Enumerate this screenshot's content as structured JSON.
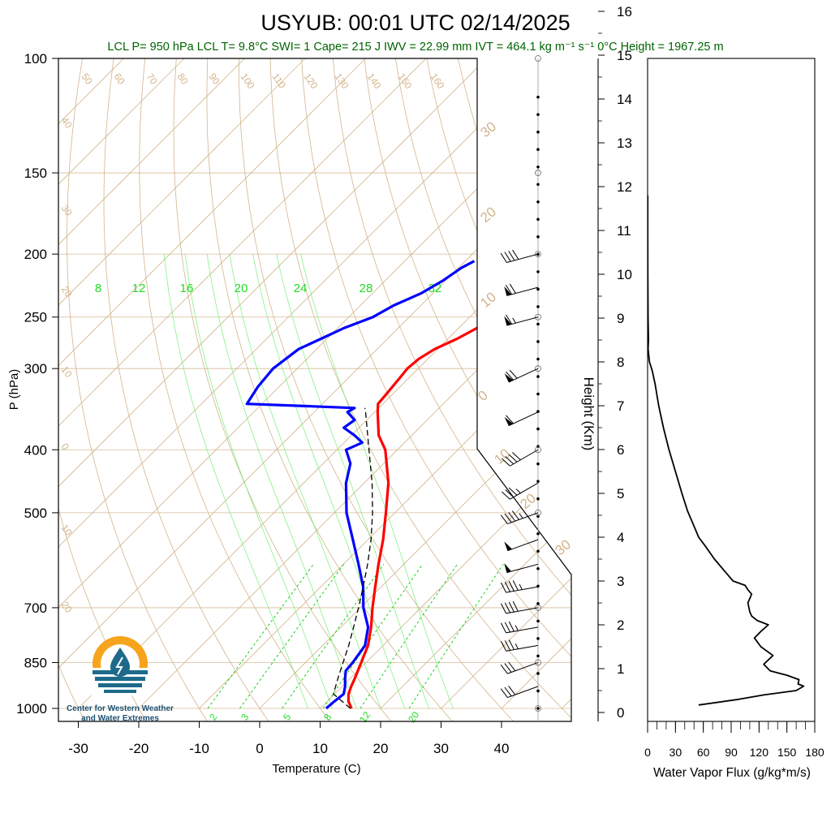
{
  "title": "USYUB: 00:01 UTC 02/14/2025",
  "subtitle": "LCL P= 950 hPa  LCL T= 9.8°C  SWI= 1  Cape= 215 J  IWV = 22.99 mm  IVT = 464.1 kg m⁻¹ s⁻¹  0°C Height = 1967.25 m",
  "logo_text": [
    "Center for Western Weather",
    "and Water Extremes"
  ],
  "colors": {
    "temperature": "#ff0000",
    "dewpoint": "#0000ff",
    "parcel": "#000000",
    "dry_adiabat": "#d2b48c",
    "isotherm": "#d2b48c",
    "mixing_ratio": "#00cc00",
    "moist_adiabat": "#66ee66",
    "subtitle": "#006400",
    "logo_orange": "#f6a41c",
    "logo_teal": "#1d6a8a"
  },
  "chart_data": [
    {
      "type": "line",
      "name": "skew-t",
      "xlabel": "Temperature (C)",
      "ylabel": "P (hPa)",
      "xticks": [
        "-30",
        "-20",
        "-10",
        "0",
        "10",
        "20",
        "30",
        "40"
      ],
      "yticks": [
        "100",
        "150",
        "200",
        "250",
        "300",
        "400",
        "500",
        "700",
        "850",
        "1000"
      ],
      "ylim": [
        1000,
        100
      ],
      "yscale": "log",
      "xlim_at_surface": [
        -34,
        47
      ],
      "skew": "45 degrees",
      "dry_adiabat_labels": [
        "50",
        "60",
        "70",
        "80",
        "90",
        "100",
        "110",
        "120",
        "130",
        "140",
        "150",
        "160",
        "40",
        "30",
        "20",
        "10",
        "0",
        "-10",
        "-20"
      ],
      "dry_adiabat_labels_left": [
        "40",
        "30",
        "20",
        "10",
        "0",
        "10",
        "20"
      ],
      "right_labels": [
        "30",
        "20",
        "10",
        "0",
        "10",
        "20",
        "30"
      ],
      "mixing_ratio_labels": [
        "8",
        "12",
        "16",
        "20",
        "24",
        "28",
        "32"
      ],
      "mixing_ratio_bottom_labels": [
        "2",
        "3",
        "5",
        "8",
        "12",
        "20"
      ],
      "series": [
        {
          "name": "temperature",
          "p": [
            1000,
            975,
            950,
            925,
            900,
            875,
            850,
            800,
            750,
            700,
            650,
            600,
            550,
            500,
            450,
            400,
            380,
            350,
            340,
            330,
            310,
            300,
            290,
            280,
            270,
            260,
            250,
            240,
            230,
            220,
            210,
            205
          ],
          "t": [
            15.2,
            13.5,
            12.3,
            11.5,
            10.8,
            10.0,
            9.2,
            7.5,
            5.0,
            2.0,
            -1.0,
            -4.2,
            -7.5,
            -11.5,
            -16.0,
            -22.0,
            -25.5,
            -29.5,
            -30.8,
            -31.0,
            -31.5,
            -31.8,
            -31.5,
            -30.5,
            -28.5,
            -27.0,
            -25.0,
            -24.0,
            -24.5,
            -24.2,
            -23.5,
            -22.5
          ]
        },
        {
          "name": "dewpoint",
          "p": [
            1000,
            975,
            950,
            925,
            900,
            875,
            850,
            800,
            750,
            700,
            650,
            600,
            550,
            500,
            450,
            420,
            400,
            390,
            380,
            370,
            360,
            350,
            345,
            343,
            340,
            320,
            300,
            280,
            270,
            260,
            250,
            240,
            230,
            220,
            210,
            205
          ],
          "t": [
            11.0,
            11.2,
            11.5,
            10.5,
            9.2,
            8.0,
            7.8,
            7.0,
            4.5,
            0.5,
            -3.0,
            -7.5,
            -12.5,
            -18.0,
            -23.0,
            -25.5,
            -28.5,
            -27.0,
            -29.5,
            -32.5,
            -32.0,
            -34.5,
            -34.0,
            -41.0,
            -52.5,
            -53.5,
            -54.0,
            -53.0,
            -51.0,
            -49.0,
            -46.0,
            -44.5,
            -42.0,
            -40.5,
            -39.5,
            -38.5
          ]
        },
        {
          "name": "parcel",
          "p": [
            1000,
            950,
            900,
            850,
            800,
            750,
            700,
            650,
            600,
            550,
            500,
            450,
            400,
            350,
            345
          ],
          "t": [
            15.0,
            9.8,
            8.0,
            6.2,
            4.3,
            2.1,
            -0.3,
            -3.0,
            -6.0,
            -9.5,
            -13.7,
            -18.7,
            -24.7,
            -31.5,
            -32.3
          ]
        }
      ],
      "wind_barbs": {
        "p": [
          1000,
          925,
          850,
          800,
          750,
          700,
          650,
          600,
          550,
          500,
          450,
          400,
          350,
          300,
          250,
          225,
          200
        ],
        "direction_deg": [
          0,
          250,
          250,
          260,
          260,
          260,
          260,
          255,
          250,
          250,
          240,
          240,
          245,
          245,
          255,
          255,
          255
        ],
        "speed_kt": [
          0,
          30,
          30,
          35,
          35,
          40,
          45,
          50,
          50,
          45,
          35,
          40,
          60,
          70,
          65,
          70,
          40
        ]
      }
    },
    {
      "type": "line",
      "name": "water-vapor-flux",
      "xlabel": "Water Vapor Flux (g/kg*m/s)",
      "ylabel": "Height (Km)",
      "xticks": [
        "0",
        "30",
        "60",
        "90",
        "120",
        "150",
        "180"
      ],
      "yticks": [
        "0",
        "1",
        "2",
        "3",
        "4",
        "5",
        "6",
        "7",
        "8",
        "9",
        "10",
        "11",
        "12",
        "13",
        "14",
        "15",
        "16"
      ],
      "xlim": [
        0,
        180
      ],
      "ylim": [
        0,
        16.4
      ],
      "series": [
        {
          "name": "flux",
          "height_km": [
            0.17,
            0.3,
            0.4,
            0.5,
            0.6,
            0.65,
            0.75,
            0.85,
            0.95,
            1.1,
            1.3,
            1.5,
            1.7,
            1.85,
            2.0,
            2.1,
            2.2,
            2.3,
            2.5,
            2.7,
            2.8,
            2.9,
            3.0,
            3.2,
            3.5,
            3.8,
            4.0,
            4.3,
            4.6,
            5.0,
            5.5,
            6.0,
            6.5,
            7.0,
            7.5,
            7.8,
            8.0,
            8.3,
            8.5,
            9.0,
            10.0,
            11.0,
            11.8
          ],
          "flux": [
            55,
            98,
            125,
            160,
            168,
            162,
            163,
            150,
            132,
            125,
            135,
            122,
            115,
            122,
            130,
            118,
            112,
            110,
            108,
            112,
            108,
            105,
            92,
            84,
            72,
            62,
            55,
            49,
            43,
            37,
            30,
            23,
            17,
            12,
            8,
            5,
            2,
            0.5,
            1,
            0.5,
            0.3,
            0.2,
            0.2
          ]
        }
      ]
    }
  ]
}
